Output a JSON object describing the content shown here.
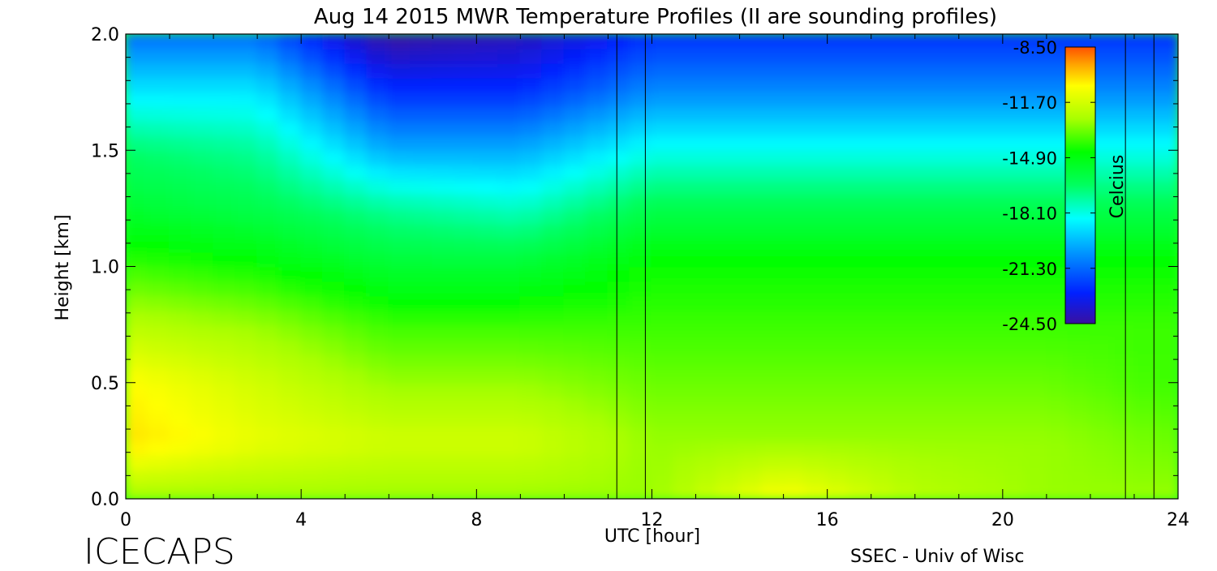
{
  "chart_data": {
    "type": "heatmap",
    "title": "Aug 14 2015 MWR Temperature Profiles (II are sounding profiles)",
    "xlabel": "UTC [hour]",
    "ylabel": "Height [km]",
    "xlim": [
      0,
      24
    ],
    "ylim": [
      0,
      2
    ],
    "x_ticks": [
      "0",
      "4",
      "8",
      "12",
      "16",
      "20",
      "24"
    ],
    "y_ticks": [
      "0.0",
      "0.5",
      "1.0",
      "1.5",
      "2.0"
    ],
    "colorbar": {
      "label": "Celcius",
      "range": [
        -24.5,
        -8.5
      ],
      "tick_labels": [
        "-8.50",
        "-11.70",
        "-14.90",
        "-18.10",
        "-21.30",
        "-24.50"
      ],
      "colormap": [
        "#3a10a0",
        "#0020ff",
        "#0090ff",
        "#00ffff",
        "#00ff60",
        "#00ff00",
        "#a8ff00",
        "#ffff00",
        "#ffa000",
        "#ff5000"
      ]
    },
    "sounding_times_utc": [
      11.2,
      11.85,
      22.8,
      23.45
    ],
    "temperature_profile_summary": {
      "heights_km": [
        0.0,
        0.25,
        0.5,
        0.75,
        1.0,
        1.25,
        1.5,
        1.75,
        2.0
      ],
      "hours": [
        0,
        3,
        6,
        9,
        12,
        15,
        18,
        21,
        24
      ],
      "temperature_c": [
        [
          -14.0,
          -11.5,
          -12.0,
          -13.5,
          -15.0,
          -16.5,
          -17.5,
          -19.5,
          -21.5
        ],
        [
          -14.0,
          -12.5,
          -13.0,
          -14.0,
          -15.5,
          -17.0,
          -18.0,
          -19.5,
          -21.5
        ],
        [
          -14.0,
          -13.0,
          -14.0,
          -15.0,
          -16.5,
          -18.0,
          -20.5,
          -22.5,
          -24.5
        ],
        [
          -14.0,
          -13.0,
          -14.0,
          -15.0,
          -16.5,
          -18.5,
          -20.5,
          -22.5,
          -24.0
        ],
        [
          -14.0,
          -14.0,
          -14.5,
          -15.0,
          -15.5,
          -17.0,
          -19.0,
          -21.0,
          -22.5
        ],
        [
          -12.0,
          -14.0,
          -14.5,
          -15.0,
          -15.5,
          -17.0,
          -19.0,
          -21.0,
          -22.5
        ],
        [
          -13.5,
          -14.0,
          -14.5,
          -15.0,
          -15.5,
          -17.0,
          -19.0,
          -21.0,
          -22.5
        ],
        [
          -14.0,
          -14.0,
          -14.5,
          -15.0,
          -15.5,
          -17.0,
          -19.0,
          -21.0,
          -22.5
        ],
        [
          -14.0,
          -14.5,
          -15.0,
          -15.0,
          -15.5,
          -17.0,
          -19.0,
          -21.0,
          -22.5
        ]
      ]
    }
  },
  "footer": {
    "logo": "ICECAPS",
    "credit": "SSEC - Univ of Wisc"
  }
}
